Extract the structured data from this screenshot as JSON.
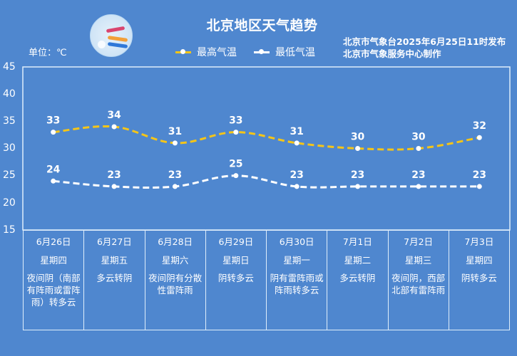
{
  "header": {
    "title": "北京地区天气趋势",
    "unit_label": "单位：℃",
    "logo_icon": "meteorological-service-logo",
    "issuer_line1": "北京市气象台2025年6月25日11时发布",
    "issuer_line2": "北京市气象服务中心制作"
  },
  "legend": {
    "high_label": "最高气温",
    "low_label": "最低气温",
    "high_color": "#f5c518",
    "low_color": "#ffffff"
  },
  "yaxis": {
    "ticks": [
      "45",
      "40",
      "35",
      "30",
      "25",
      "20",
      "15"
    ]
  },
  "forecast": [
    {
      "date": "6月26日",
      "weekday": "星期四",
      "desc": "夜间阴（南部有阵雨或雷阵雨）转多云",
      "high": "33",
      "low": "24"
    },
    {
      "date": "6月27日",
      "weekday": "星期五",
      "desc": "多云转阴",
      "high": "34",
      "low": "23"
    },
    {
      "date": "6月28日",
      "weekday": "星期六",
      "desc": "夜间阴有分散性雷阵雨",
      "high": "31",
      "low": "23"
    },
    {
      "date": "6月29日",
      "weekday": "星期日",
      "desc": "阴转多云",
      "high": "33",
      "low": "25"
    },
    {
      "date": "6月30日",
      "weekday": "星期一",
      "desc": "阴有雷阵雨或阵雨转多云",
      "high": "31",
      "low": "23"
    },
    {
      "date": "7月1日",
      "weekday": "星期二",
      "desc": "多云转阴",
      "high": "30",
      "low": "23"
    },
    {
      "date": "7月2日",
      "weekday": "星期三",
      "desc": "夜间阴，西部北部有雷阵雨",
      "high": "30",
      "low": "23"
    },
    {
      "date": "7月3日",
      "weekday": "星期四",
      "desc": "阴转多云",
      "high": "32",
      "low": "23"
    }
  ],
  "chart_data": {
    "type": "line",
    "title": "北京地区天气趋势",
    "xlabel": "",
    "ylabel": "单位：℃",
    "categories": [
      "6月26日",
      "6月27日",
      "6月28日",
      "6月29日",
      "6月30日",
      "7月1日",
      "7月2日",
      "7月3日"
    ],
    "series": [
      {
        "name": "最高气温",
        "values": [
          33,
          34,
          31,
          33,
          31,
          30,
          30,
          32
        ],
        "color": "#f5c518",
        "style": "dashed"
      },
      {
        "name": "最低气温",
        "values": [
          24,
          23,
          23,
          25,
          23,
          23,
          23,
          23
        ],
        "color": "#ffffff",
        "style": "dashed"
      }
    ],
    "ylim": [
      15,
      45
    ],
    "yticks": [
      15,
      20,
      25,
      30,
      35,
      40,
      45
    ],
    "grid": false,
    "legend_position": "top",
    "data_labels": true
  }
}
